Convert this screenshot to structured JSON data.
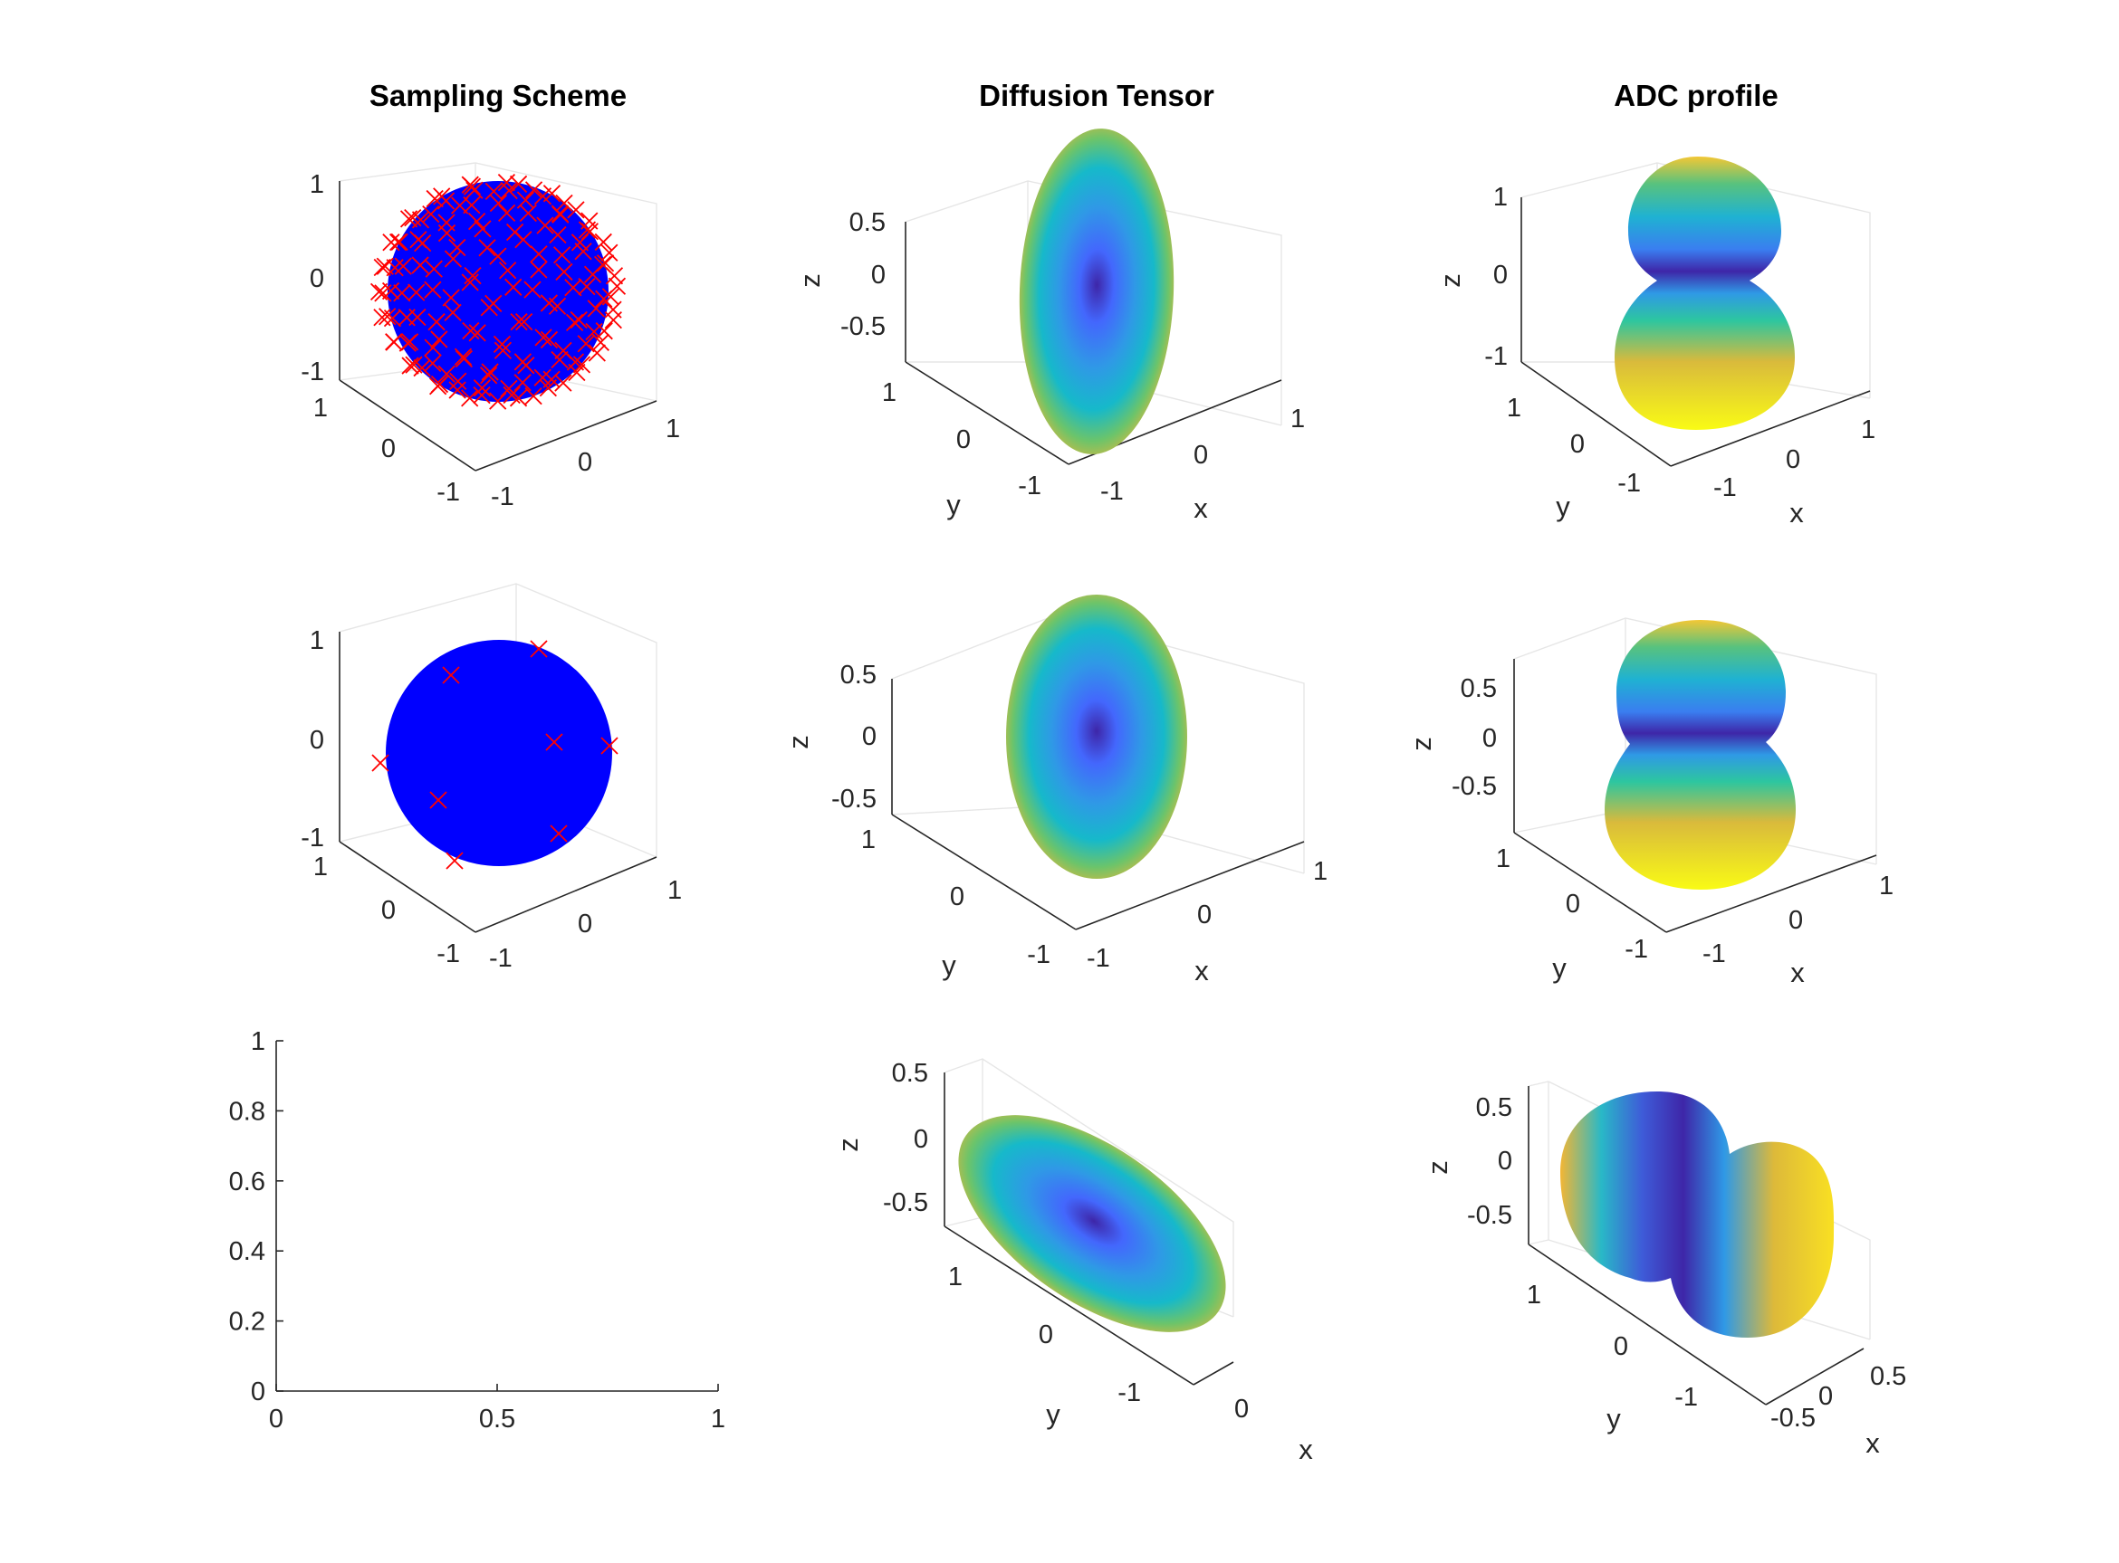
{
  "figure": {
    "titles": {
      "col1": "Sampling Scheme",
      "col2": "Diffusion Tensor",
      "col3": "ADC profile"
    },
    "colors": {
      "sphere": "#0000ff",
      "marker": "#ff0000",
      "axis": "#262626",
      "grid": "#e6e6e6"
    },
    "colormap": [
      "#3e26a8",
      "#4367fd",
      "#2f99e6",
      "#16b9ca",
      "#2dc69f",
      "#a2c64a",
      "#f3b634",
      "#f9e022"
    ]
  },
  "chart_data": [
    {
      "id": "sampling-dense",
      "type": "scatter3d",
      "title": "Sampling Scheme",
      "surface": "unit sphere",
      "marker": "x",
      "marker_count_approx": 150,
      "xlabel": "",
      "ylabel": "",
      "zlabel": "",
      "xticks": [
        "-1",
        "0",
        "1"
      ],
      "yticks": [
        "-1",
        "0",
        "1"
      ],
      "zticks": [
        "-1",
        "0",
        "1"
      ],
      "xlim": [
        -1,
        1
      ],
      "ylim": [
        -1,
        1
      ],
      "zlim": [
        -1,
        1
      ]
    },
    {
      "id": "tensor-1",
      "type": "surface3d",
      "title": "Diffusion Tensor",
      "shape": "ellipsoid elongated along z",
      "xlabel": "x",
      "ylabel": "y",
      "zlabel": "z",
      "xticks": [
        "-1",
        "0",
        "1"
      ],
      "yticks": [
        "-1",
        "0",
        "1"
      ],
      "zticks": [
        "-0.5",
        "0",
        "0.5"
      ],
      "zlim": [
        -0.75,
        0.75
      ]
    },
    {
      "id": "adc-1",
      "type": "surface3d",
      "title": "ADC profile",
      "shape": "peanut elongated along z",
      "xlabel": "x",
      "ylabel": "y",
      "zlabel": "z",
      "xticks": [
        "-1",
        "0",
        "1"
      ],
      "yticks": [
        "-1",
        "0",
        "1"
      ],
      "zticks": [
        "-1",
        "0",
        "1"
      ],
      "zlim": [
        -1,
        1
      ]
    },
    {
      "id": "sampling-sparse",
      "type": "scatter3d",
      "surface": "unit sphere",
      "marker": "x",
      "marker_count_approx": 12,
      "xlabel": "",
      "ylabel": "",
      "zlabel": "",
      "xticks": [
        "-1",
        "0",
        "1"
      ],
      "yticks": [
        "-1",
        "0",
        "1"
      ],
      "zticks": [
        "-1",
        "0",
        "1"
      ],
      "xlim": [
        -1,
        1
      ],
      "ylim": [
        -1,
        1
      ],
      "zlim": [
        -1,
        1
      ]
    },
    {
      "id": "tensor-2",
      "type": "surface3d",
      "shape": "ellipsoid elongated along z",
      "xlabel": "x",
      "ylabel": "y",
      "zlabel": "z",
      "xticks": [
        "-1",
        "0",
        "1"
      ],
      "yticks": [
        "-1",
        "0",
        "1"
      ],
      "zticks": [
        "-0.5",
        "0",
        "0.5"
      ],
      "zlim": [
        -0.75,
        0.75
      ]
    },
    {
      "id": "adc-2",
      "type": "surface3d",
      "shape": "peanut elongated along z",
      "xlabel": "x",
      "ylabel": "y",
      "zlabel": "z",
      "xticks": [
        "-1",
        "0",
        "1"
      ],
      "yticks": [
        "-1",
        "0",
        "1"
      ],
      "zticks": [
        "-0.5",
        "0",
        "0.5"
      ],
      "zlim": [
        -0.8,
        0.8
      ]
    },
    {
      "id": "empty-axes",
      "type": "line",
      "series": [],
      "xticks": [
        "0",
        "0.5",
        "1"
      ],
      "yticks": [
        "0",
        "0.2",
        "0.4",
        "0.6",
        "0.8",
        "1"
      ],
      "xlim": [
        0,
        1
      ],
      "ylim": [
        0,
        1
      ]
    },
    {
      "id": "tensor-3",
      "type": "surface3d",
      "shape": "tilted ellipsoid",
      "xlabel": "x",
      "ylabel": "y",
      "zlabel": "z",
      "xticks": [
        "0"
      ],
      "yticks": [
        "-1",
        "0",
        "1"
      ],
      "zticks": [
        "-0.5",
        "0",
        "0.5"
      ]
    },
    {
      "id": "adc-3",
      "type": "surface3d",
      "shape": "tilted peanut",
      "xlabel": "x",
      "ylabel": "y",
      "zlabel": "z",
      "xticks": [
        "-0.5",
        "0",
        "0.5"
      ],
      "yticks": [
        "-1",
        "0",
        "1"
      ],
      "zticks": [
        "-0.5",
        "0",
        "0.5"
      ]
    }
  ]
}
